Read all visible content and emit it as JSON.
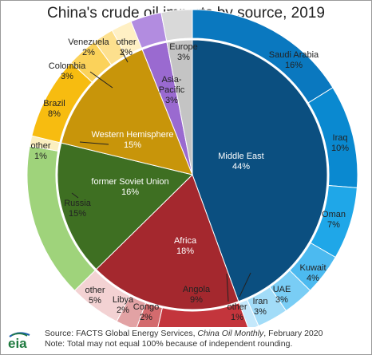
{
  "chart_data": {
    "type": "pie",
    "title": "China's crude oil imports by source, 2019",
    "inner_ring": [
      {
        "name": "Middle East",
        "value": 44,
        "color": "#0b4f80",
        "label": "Middle East\n44%"
      },
      {
        "name": "Africa",
        "value": 18,
        "color": "#a4282e",
        "label": "Africa\n18%"
      },
      {
        "name": "former Soviet Union",
        "value": 16,
        "color": "#3e6f22",
        "label": "former Soviet Union\n16%"
      },
      {
        "name": "Western Hemisphere",
        "value": 15,
        "color": "#c8950a",
        "label": "Western Hemisphere\n15%"
      },
      {
        "name": "Asia-Pacific",
        "value": 3,
        "color": "#9a6ad0",
        "label": "Asia-\nPacific\n3%"
      },
      {
        "name": "Europe",
        "value": 3,
        "color": "#c4c4c4",
        "label": "Europe\n3%"
      }
    ],
    "outer_ring": [
      {
        "name": "Saudi Arabia",
        "value": 16,
        "color": "#0a78bf",
        "label": "Saudi Arabia\n16%"
      },
      {
        "name": "Iraq",
        "value": 10,
        "color": "#0a89d0",
        "label": "Iraq\n10%"
      },
      {
        "name": "Oman",
        "value": 7,
        "color": "#1fa7e8",
        "label": "Oman\n7%"
      },
      {
        "name": "Kuwait",
        "value": 4,
        "color": "#4cbaf0",
        "label": "Kuwait\n4%"
      },
      {
        "name": "UAE",
        "value": 3,
        "color": "#79cdf5",
        "label": "UAE\n3%"
      },
      {
        "name": "Iran",
        "value": 3,
        "color": "#a2dcf8",
        "label": "Iran\n3%"
      },
      {
        "name": "other (Middle East)",
        "value": 1,
        "color": "#c4e8fb",
        "label": "other\n1%"
      },
      {
        "name": "Angola",
        "value": 9,
        "color": "#c3353c",
        "label": "Angola\n9%"
      },
      {
        "name": "Congo",
        "value": 2,
        "color": "#d36b6e",
        "label": "Congo\n2%"
      },
      {
        "name": "Libya",
        "value": 2,
        "color": "#e2a2a4",
        "label": "Libya\n2%"
      },
      {
        "name": "other (Africa)",
        "value": 5,
        "color": "#f3d2d3",
        "label": "other\n5%"
      },
      {
        "name": "Russia",
        "value": 15,
        "color": "#9fd37b",
        "label": "Russia\n15%"
      },
      {
        "name": "other (Western Hemisphere)",
        "value": 1,
        "color": "#fbefbf",
        "label": "other\n1%"
      },
      {
        "name": "Brazil",
        "value": 8,
        "color": "#f7bc10",
        "label": "Brazil\n8%"
      },
      {
        "name": "Colombia",
        "value": 3,
        "color": "#fbd25a",
        "label": "Colombia\n3%"
      },
      {
        "name": "Venezuela",
        "value": 2,
        "color": "#fde08e",
        "label": "Venezuela\n2%"
      },
      {
        "name": "other (Western Hemisphere 2)",
        "value": 2,
        "color": "#fff0c4",
        "label": "other\n2%"
      },
      {
        "name": "Asia-Pacific",
        "value": 3,
        "color": "#b28ce0",
        "label": ""
      },
      {
        "name": "Europe",
        "value": 3,
        "color": "#d9d9d9",
        "label": ""
      }
    ]
  },
  "footer": {
    "source_prefix": "Source: FACTS Global Energy Services,",
    "source_publication": "China Oil Monthly",
    "source_suffix": ", February 2020",
    "note": "Note: Total may not equal 100% because of independent rounding.",
    "logo_text": "eia"
  },
  "colors": {
    "logo_green": "#1f7a3f",
    "logo_blue": "#1b5fa8"
  }
}
